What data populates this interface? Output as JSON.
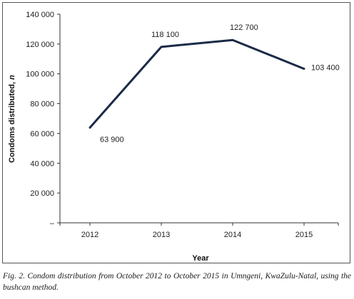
{
  "chart_data": {
    "type": "line",
    "categories": [
      "2012",
      "2013",
      "2014",
      "2015"
    ],
    "series": [
      {
        "values": [
          63900,
          118100,
          122700,
          103400
        ]
      }
    ],
    "data_labels": [
      "63 900",
      "118 100",
      "122 700",
      "103 400"
    ],
    "xlabel": "Year",
    "ylabel_main": "Condoms distributed, ",
    "ylabel_unit": "n",
    "ylim": [
      0,
      140000
    ],
    "y_ticks": [
      0,
      20000,
      40000,
      60000,
      80000,
      100000,
      120000,
      140000
    ],
    "y_tick_labels": [
      "–",
      "20 000",
      "40 000",
      "60 000",
      "80 000",
      "100 000",
      "120 000",
      "140 000"
    ],
    "grid": false,
    "line_color": "#1b2a47"
  },
  "caption": "Fig. 2. Condom distribution from October 2012 to October 2015 in Umngeni, KwaZulu-Natal, using the bushcan method."
}
